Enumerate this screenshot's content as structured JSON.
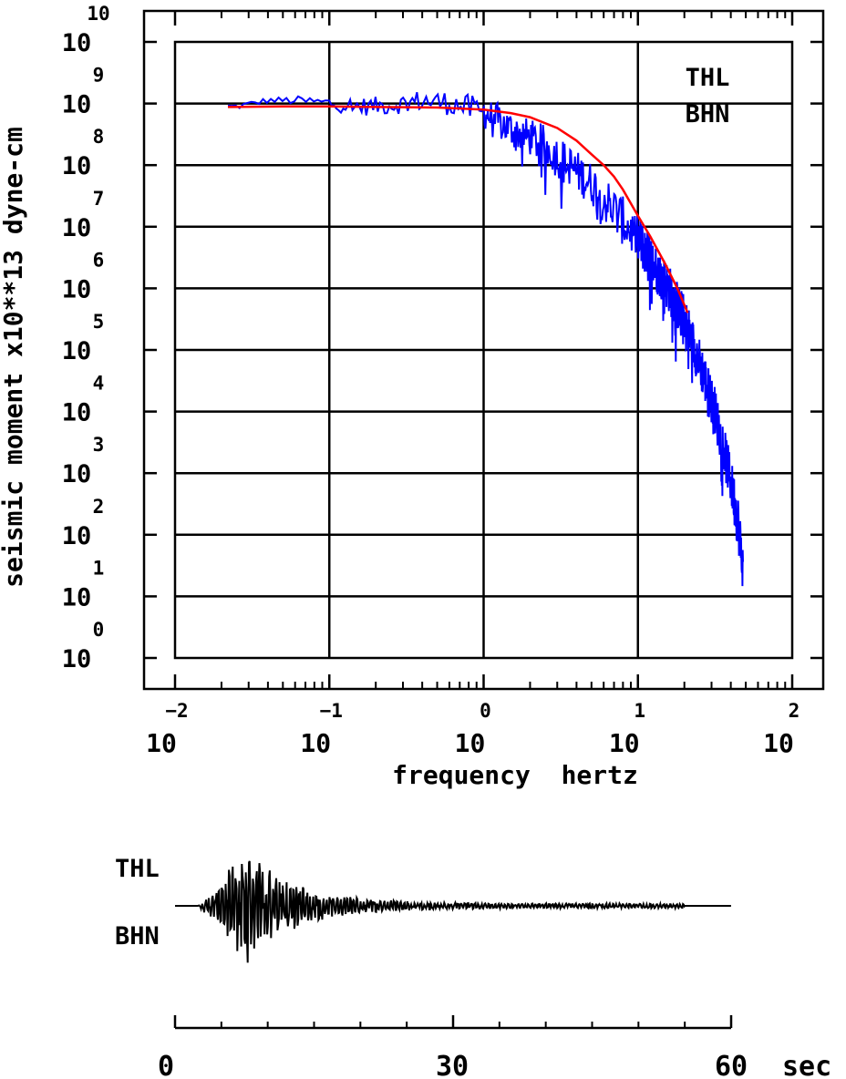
{
  "chart_data": [
    {
      "type": "line",
      "title": "",
      "xlabel": "frequency  hertz",
      "ylabel": "seismic moment x10**13 dyne-cm",
      "x_scale": "log",
      "y_scale": "log",
      "xlim": [
        0.01,
        100
      ],
      "ylim": [
        1,
        10000000000
      ],
      "x_tick_exponents": [
        "-2",
        "-1",
        "0",
        "1",
        "2"
      ],
      "y_tick_exponents": [
        "0",
        "1",
        "2",
        "3",
        "4",
        "5",
        "6",
        "7",
        "8",
        "9",
        "10"
      ],
      "tick_base": "10",
      "grid": true,
      "station_labels": [
        "THL",
        "BHN"
      ],
      "series": [
        {
          "color": "#0000ff",
          "style": "spectrum",
          "x": [
            0.022,
            0.025,
            0.03,
            0.035,
            0.04,
            0.05,
            0.06,
            0.07,
            0.08,
            0.09,
            0.1,
            0.12,
            0.14,
            0.16,
            0.2,
            0.25,
            0.3,
            0.4,
            0.5,
            0.6,
            0.8,
            1.0,
            1.3,
            1.6,
            2.0,
            2.5,
            3.0,
            4.0,
            5.0,
            6.0,
            7.0,
            8.0,
            10.0,
            12.0,
            15.0,
            20.0,
            25.0,
            30.0,
            35.0,
            40.0,
            45.0,
            48.0
          ],
          "y": [
            850000000,
            1000000000,
            1050000000,
            1000000000,
            1100000000,
            1150000000,
            1200000000,
            1100000000,
            1000000000,
            900000000,
            1000000000,
            800000000,
            700000000,
            900000000,
            1000000000,
            1150000000,
            900000000,
            1300000000,
            1100000000,
            1200000000,
            1050000000,
            950000000,
            800000000,
            700000000,
            500000000,
            300000000,
            250000000,
            180000000,
            120000000,
            80000000,
            50000000,
            35000000,
            12000000,
            6000000,
            2500000,
            700000,
            150000,
            40000,
            12000,
            2000,
            300,
            30
          ],
          "trend": {
            "center_log_x": [
              -1.6,
              -1.4,
              -1.2,
              -1.0,
              -0.8,
              -0.6,
              -0.4,
              -0.2,
              0.0,
              0.1,
              0.2,
              0.3,
              0.4,
              0.5,
              0.6,
              0.7,
              0.8,
              0.9,
              1.0,
              1.1,
              1.2,
              1.3,
              1.4,
              1.5,
              1.6,
              1.65,
              1.7
            ],
            "center_log_y": [
              8.95,
              9.05,
              9.05,
              9.0,
              8.95,
              8.97,
              9.05,
              9.0,
              8.85,
              8.7,
              8.55,
              8.45,
              8.3,
              8.1,
              7.9,
              7.7,
              7.4,
              7.1,
              6.8,
              6.4,
              6.0,
              5.5,
              4.8,
              4.0,
              2.9,
              2.2,
              1.0
            ],
            "amplitude_log": [
              0.05,
              0.05,
              0.07,
              0.12,
              0.15,
              0.15,
              0.18,
              0.2,
              0.25,
              0.3,
              0.3,
              0.3,
              0.35,
              0.35,
              0.35,
              0.35,
              0.4,
              0.4,
              0.4,
              0.4,
              0.4,
              0.4,
              0.4,
              0.4,
              0.4,
              0.45,
              0.35
            ]
          }
        },
        {
          "color": "#ff0000",
          "style": "model",
          "x": [
            0.022,
            0.05,
            0.1,
            0.2,
            0.5,
            1.0,
            1.5,
            2.0,
            3.0,
            4.0,
            5.0,
            6.0,
            7.0,
            8.0,
            10.0,
            12.0,
            15.0,
            18.0,
            21.0
          ],
          "y": [
            880000000,
            900000000,
            900000000,
            880000000,
            860000000,
            800000000,
            700000000,
            600000000,
            400000000,
            250000000,
            150000000,
            100000000,
            65000000,
            40000000,
            15000000,
            7000000,
            2500000,
            1000000,
            400000
          ]
        }
      ]
    },
    {
      "type": "line",
      "title": "",
      "xlabel": "",
      "station_labels": [
        "THL",
        "BHN"
      ],
      "time_axis_labels": [
        "0",
        "30",
        "60"
      ],
      "time_unit": "sec",
      "xlim": [
        0,
        60
      ],
      "major_ticks": [
        0,
        30,
        60
      ],
      "minor_ticks": [
        5,
        10,
        15,
        20,
        25,
        35,
        40,
        45,
        50,
        55
      ],
      "series": [
        {
          "name": "",
          "color": "#000000",
          "style": "seismogram",
          "start_time": 0,
          "signal_onset": 2.5,
          "peak_time": 8,
          "signal_end": 55,
          "trace_end": 60,
          "peak_amplitude": 1.0
        }
      ]
    }
  ]
}
